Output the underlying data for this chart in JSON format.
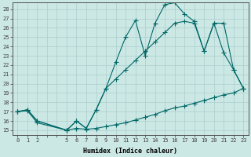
{
  "xlabel": "Humidex (Indice chaleur)",
  "bg_color": "#cce8e4",
  "grid_color": "#aacece",
  "line_color": "#006868",
  "xticks": [
    0,
    1,
    2,
    3,
    4,
    5,
    6,
    7,
    8,
    9,
    10,
    11,
    12,
    13,
    14,
    15,
    16,
    17,
    18,
    19,
    20,
    21,
    22,
    23
  ],
  "xticklabels": [
    "0",
    "1",
    "2",
    "",
    "",
    "5",
    "6",
    "7",
    "8",
    "9",
    "10",
    "11",
    "12",
    "13",
    "14",
    "15",
    "16",
    "17",
    "18",
    "19",
    "20",
    "21",
    "22",
    "23"
  ],
  "yticks": [
    15,
    16,
    17,
    18,
    19,
    20,
    21,
    22,
    23,
    24,
    25,
    26,
    27,
    28
  ],
  "xlim": [
    -0.5,
    23.5
  ],
  "ylim": [
    14.5,
    28.7
  ],
  "line1_x": [
    0,
    1,
    2,
    5,
    6,
    7,
    8,
    9,
    10,
    11,
    12,
    13,
    14,
    15,
    16,
    17,
    18,
    19,
    20,
    21,
    22,
    23
  ],
  "line1_y": [
    17.0,
    17.2,
    16.0,
    15.0,
    16.0,
    15.2,
    17.2,
    19.5,
    22.3,
    25.0,
    26.8,
    23.0,
    26.5,
    28.5,
    28.7,
    27.5,
    26.7,
    23.5,
    26.5,
    26.5,
    21.5,
    19.5
  ],
  "line2_x": [
    0,
    1,
    2,
    5,
    6,
    7,
    8,
    9,
    10,
    11,
    12,
    13,
    14,
    15,
    16,
    17,
    18,
    19,
    20,
    21,
    22,
    23
  ],
  "line2_y": [
    17.0,
    17.2,
    16.0,
    15.0,
    16.0,
    15.2,
    17.2,
    19.5,
    20.5,
    21.5,
    22.5,
    23.5,
    24.5,
    25.5,
    26.5,
    26.7,
    26.5,
    23.5,
    26.5,
    23.3,
    21.5,
    19.5
  ],
  "line3_x": [
    0,
    1,
    2,
    5,
    6,
    7,
    8,
    9,
    10,
    11,
    12,
    13,
    14,
    15,
    16,
    17,
    18,
    19,
    20,
    21,
    22,
    23
  ],
  "line3_y": [
    17.0,
    17.1,
    15.8,
    15.0,
    15.2,
    15.1,
    15.2,
    15.4,
    15.6,
    15.8,
    16.1,
    16.4,
    16.7,
    17.1,
    17.4,
    17.6,
    17.9,
    18.2,
    18.5,
    18.8,
    19.0,
    19.5
  ]
}
